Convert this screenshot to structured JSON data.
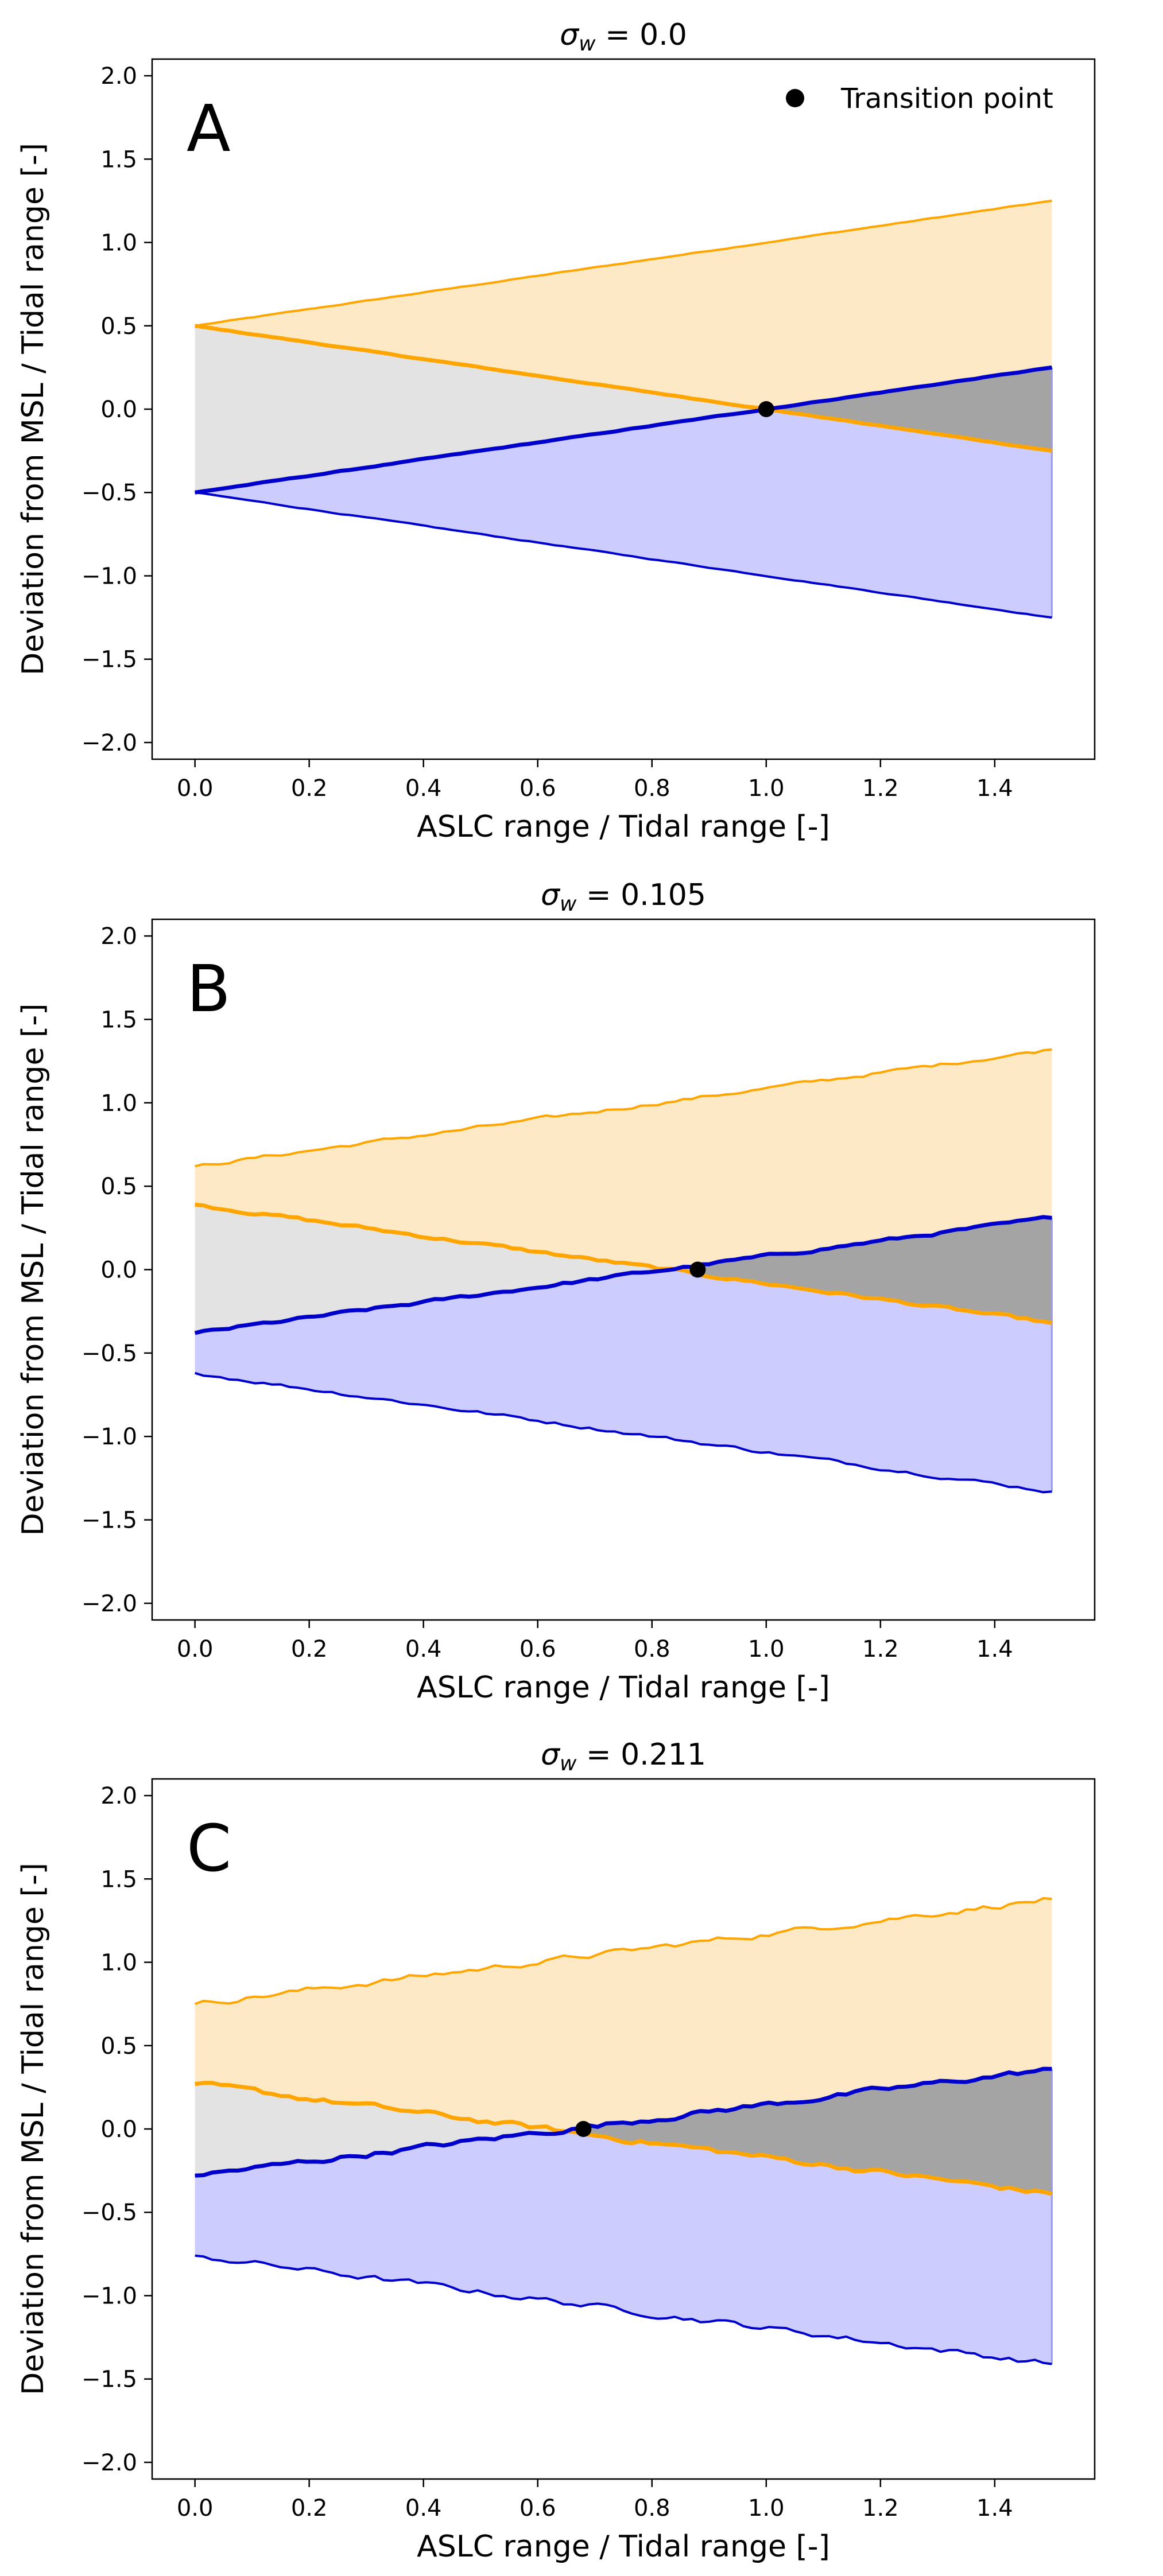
{
  "figure": {
    "legend": {
      "marker_label": "Transition point",
      "placement": "upper right of panel A"
    },
    "colors": {
      "high": "#ffa500",
      "low": "#0000cd",
      "high_fill": "#fde9c6",
      "low_fill": "#ccccff",
      "mid_fill": "#e3e3e3",
      "overlap_fill": "#a4a4a4",
      "marker": "#000000"
    }
  },
  "chart_data": [
    {
      "type": "line",
      "panel_label": "A",
      "title": "σw = 0.0",
      "title_prefix": "σ",
      "title_subscript": "w",
      "title_value": " = 0.0",
      "xlabel": "ASLC range / Tidal range [-]",
      "ylabel": "Deviation from MSL / Tidal range [-]",
      "xlim": [
        -0.075,
        1.575
      ],
      "ylim": [
        -2.1,
        2.1
      ],
      "xticks": [
        "0.0",
        "0.2",
        "0.4",
        "0.6",
        "0.8",
        "1.0",
        "1.2",
        "1.4"
      ],
      "yticks": [
        "−2.0",
        "−1.5",
        "−1.0",
        "−0.5",
        "0.0",
        "0.5",
        "1.0",
        "1.5",
        "2.0"
      ],
      "series": [
        {
          "x": [
            0,
            1.5
          ],
          "values": [
            0.5,
            1.25
          ]
        },
        {
          "x": [
            0,
            1.5
          ],
          "values": [
            0.5,
            -0.25
          ]
        },
        {
          "x": [
            0,
            1.5
          ],
          "values": [
            -0.5,
            0.25
          ]
        },
        {
          "x": [
            0,
            1.5
          ],
          "values": [
            -0.5,
            -1.25
          ]
        }
      ],
      "transition_point": {
        "x": 1.0,
        "y": 0.0
      },
      "legend": true
    },
    {
      "type": "line",
      "panel_label": "B",
      "title": "σw = 0.105",
      "title_prefix": "σ",
      "title_subscript": "w",
      "title_value": " = 0.105",
      "xlabel": "ASLC range / Tidal range [-]",
      "ylabel": "Deviation from MSL / Tidal range [-]",
      "xlim": [
        -0.075,
        1.575
      ],
      "ylim": [
        -2.1,
        2.1
      ],
      "xticks": [
        "0.0",
        "0.2",
        "0.4",
        "0.6",
        "0.8",
        "1.0",
        "1.2",
        "1.4"
      ],
      "yticks": [
        "−2.0",
        "−1.5",
        "−1.0",
        "−0.5",
        "0.0",
        "0.5",
        "1.0",
        "1.5",
        "2.0"
      ],
      "series": [
        {
          "x": [
            0,
            1.5
          ],
          "values": [
            0.62,
            1.32
          ]
        },
        {
          "x": [
            0,
            1.5
          ],
          "values": [
            0.39,
            -0.32
          ]
        },
        {
          "x": [
            0,
            1.5
          ],
          "values": [
            -0.38,
            0.31
          ]
        },
        {
          "x": [
            0,
            1.5
          ],
          "values": [
            -0.62,
            -1.33
          ]
        }
      ],
      "transition_point": {
        "x": 0.88,
        "y": 0.0
      },
      "legend": false
    },
    {
      "type": "line",
      "panel_label": "C",
      "title": "σw = 0.211",
      "title_prefix": "σ",
      "title_subscript": "w",
      "title_value": " = 0.211",
      "xlabel": "ASLC range / Tidal range [-]",
      "ylabel": "Deviation from MSL / Tidal range [-]",
      "xlim": [
        -0.075,
        1.575
      ],
      "ylim": [
        -2.1,
        2.1
      ],
      "xticks": [
        "0.0",
        "0.2",
        "0.4",
        "0.6",
        "0.8",
        "1.0",
        "1.2",
        "1.4"
      ],
      "yticks": [
        "−2.0",
        "−1.5",
        "−1.0",
        "−0.5",
        "0.0",
        "0.5",
        "1.0",
        "1.5",
        "2.0"
      ],
      "series": [
        {
          "x": [
            0,
            1.5
          ],
          "values": [
            0.75,
            1.38
          ]
        },
        {
          "x": [
            0,
            1.5
          ],
          "values": [
            0.27,
            -0.39
          ]
        },
        {
          "x": [
            0,
            1.5
          ],
          "values": [
            -0.28,
            0.36
          ]
        },
        {
          "x": [
            0,
            1.5
          ],
          "values": [
            -0.76,
            -1.41
          ]
        }
      ],
      "transition_point": {
        "x": 0.68,
        "y": 0.0
      },
      "legend": false
    }
  ]
}
